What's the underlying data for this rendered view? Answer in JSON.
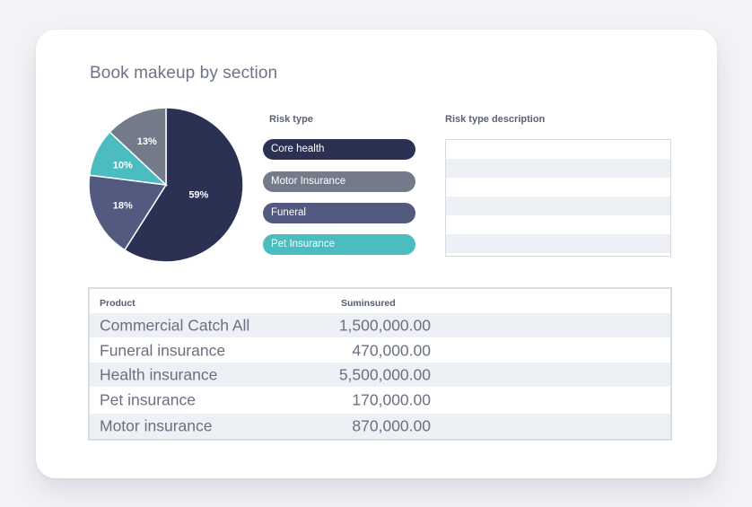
{
  "page": {
    "title": "Book makeup by section"
  },
  "chart_data": {
    "type": "pie",
    "slices": [
      {
        "label": "59%",
        "value": 59,
        "color": "#2b3152"
      },
      {
        "label": "18%",
        "value": 18,
        "color": "#525a7f"
      },
      {
        "label": "10%",
        "value": 10,
        "color": "#4bbcbf"
      },
      {
        "label": "13%",
        "value": 13,
        "color": "#737b8b"
      }
    ]
  },
  "risk_type": {
    "header": "Risk type",
    "items": [
      {
        "label": "Core health",
        "color": "#2b3152"
      },
      {
        "label": "Motor Insurance",
        "color": "#737b8b"
      },
      {
        "label": "Funeral",
        "color": "#525a7f"
      },
      {
        "label": "Pet Insurance",
        "color": "#4bbcbf"
      }
    ]
  },
  "risk_description": {
    "header": "Risk type description"
  },
  "table": {
    "columns": [
      "Product",
      "Suminsured"
    ],
    "rows": [
      {
        "product": "Commercial Catch All",
        "sum": "1,500,000.00"
      },
      {
        "product": "Funeral insurance",
        "sum": "470,000.00"
      },
      {
        "product": "Health insurance",
        "sum": "5,500,000.00"
      },
      {
        "product": "Pet insurance",
        "sum": "170,000.00"
      },
      {
        "product": "Motor insurance",
        "sum": "870,000.00"
      }
    ]
  }
}
